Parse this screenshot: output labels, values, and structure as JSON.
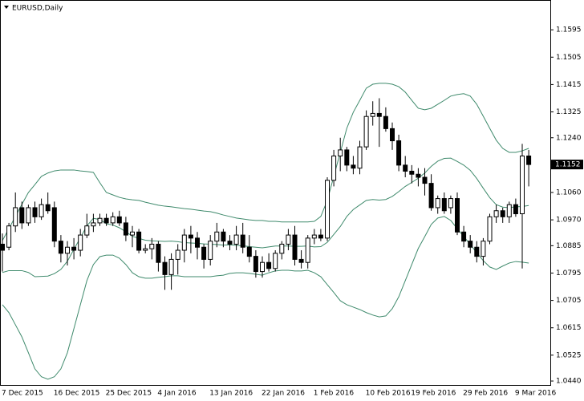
{
  "chart_data": {
    "type": "candlestick",
    "title": "EURUSD,Daily",
    "categories": [
      "7 Dec 2015",
      null,
      null,
      null,
      null,
      null,
      null,
      null,
      "16 Dec 2015",
      null,
      null,
      null,
      null,
      null,
      null,
      null,
      "25 Dec 2015",
      null,
      null,
      null,
      null,
      null,
      null,
      null,
      "4 Jan 2016",
      null,
      null,
      null,
      null,
      null,
      null,
      null,
      "13 Jan 2016",
      null,
      null,
      null,
      null,
      null,
      null,
      null,
      "22 Jan 2016",
      null,
      null,
      null,
      null,
      null,
      null,
      null,
      "1 Feb 2016",
      null,
      null,
      null,
      null,
      null,
      null,
      null,
      "10 Feb 2016",
      null,
      null,
      null,
      null,
      null,
      null,
      "19 Feb 2016",
      null,
      null,
      null,
      null,
      null,
      null,
      null,
      "29 Feb 2016",
      null,
      null,
      null,
      null,
      null,
      null,
      null,
      "9 Mar 2016",
      null,
      null
    ],
    "open": [
      1.089,
      1.088,
      1.095,
      1.101,
      1.096,
      1.101,
      1.098,
      1.102,
      1.101,
      1.09,
      1.086,
      1.088,
      1.087,
      1.092,
      1.095,
      1.096,
      1.0975,
      1.096,
      1.098,
      1.096,
      1.092,
      1.093,
      1.087,
      1.0875,
      1.089,
      1.083,
      1.079,
      1.084,
      1.087,
      1.092,
      1.091,
      1.088,
      1.084,
      1.09,
      1.093,
      1.09,
      1.089,
      1.092,
      1.088,
      1.085,
      1.08,
      1.083,
      1.081,
      1.086,
      1.089,
      1.092,
      1.084,
      1.083,
      1.091,
      1.092,
      1.091,
      1.11,
      1.118,
      1.12,
      1.115,
      1.114,
      1.121,
      1.131,
      1.132,
      1.131,
      1.127,
      1.123,
      1.115,
      1.113,
      1.112,
      1.111,
      1.109,
      1.101,
      1.104,
      1.101,
      1.104,
      1.093,
      1.09,
      1.088,
      1.085,
      1.09,
      1.098,
      1.1,
      1.098,
      1.102,
      1.099,
      1.118
    ],
    "high": [
      1.0925,
      1.096,
      1.106,
      1.103,
      1.102,
      1.103,
      1.104,
      1.106,
      1.103,
      1.092,
      1.09,
      1.091,
      1.094,
      1.099,
      1.099,
      1.099,
      1.099,
      1.0995,
      1.1,
      1.098,
      1.095,
      1.094,
      1.089,
      1.091,
      1.09,
      1.085,
      1.086,
      1.089,
      1.094,
      1.095,
      1.093,
      1.089,
      1.092,
      1.096,
      1.094,
      1.092,
      1.095,
      1.096,
      1.092,
      1.087,
      1.085,
      1.086,
      1.087,
      1.09,
      1.094,
      1.095,
      1.087,
      1.092,
      1.094,
      1.094,
      1.111,
      1.12,
      1.124,
      1.121,
      1.118,
      1.123,
      1.133,
      1.136,
      1.137,
      1.134,
      1.129,
      1.125,
      1.118,
      1.115,
      1.114,
      1.114,
      1.112,
      1.105,
      1.106,
      1.105,
      1.106,
      1.095,
      1.092,
      1.09,
      1.091,
      1.099,
      1.102,
      1.101,
      1.103,
      1.104,
      1.122,
      1.12
    ],
    "low": [
      1.08,
      1.087,
      1.093,
      1.094,
      1.095,
      1.096,
      1.097,
      1.099,
      1.088,
      1.083,
      1.082,
      1.084,
      1.085,
      1.091,
      1.093,
      1.095,
      1.095,
      1.095,
      1.095,
      1.09,
      1.088,
      1.086,
      1.086,
      1.084,
      1.08,
      1.074,
      1.074,
      1.079,
      1.083,
      1.086,
      1.084,
      1.081,
      1.082,
      1.088,
      1.088,
      1.087,
      1.087,
      1.086,
      1.083,
      1.078,
      1.078,
      1.08,
      1.08,
      1.084,
      1.087,
      1.082,
      1.081,
      1.081,
      1.089,
      1.09,
      1.09,
      1.108,
      1.113,
      1.113,
      1.112,
      1.112,
      1.12,
      1.128,
      1.121,
      1.126,
      1.12,
      1.113,
      1.111,
      1.109,
      1.108,
      1.105,
      1.1,
      1.099,
      1.099,
      1.099,
      1.092,
      1.088,
      1.086,
      1.083,
      1.082,
      1.089,
      1.096,
      1.096,
      1.096,
      1.098,
      1.081,
      1.108
    ],
    "close": [
      1.087,
      1.095,
      1.101,
      1.096,
      1.101,
      1.098,
      1.102,
      1.1,
      1.09,
      1.086,
      1.088,
      1.087,
      1.092,
      1.095,
      1.096,
      1.0975,
      1.096,
      1.098,
      1.096,
      1.092,
      1.093,
      1.087,
      1.0875,
      1.089,
      1.083,
      1.079,
      1.084,
      1.087,
      1.092,
      1.091,
      1.088,
      1.084,
      1.09,
      1.093,
      1.09,
      1.089,
      1.092,
      1.088,
      1.085,
      1.08,
      1.083,
      1.081,
      1.086,
      1.089,
      1.092,
      1.084,
      1.083,
      1.091,
      1.092,
      1.091,
      1.11,
      1.118,
      1.12,
      1.115,
      1.114,
      1.121,
      1.131,
      1.132,
      1.131,
      1.127,
      1.123,
      1.115,
      1.113,
      1.112,
      1.111,
      1.109,
      1.101,
      1.104,
      1.1,
      1.104,
      1.093,
      1.09,
      1.088,
      1.085,
      1.09,
      1.098,
      1.1,
      1.098,
      1.102,
      1.099,
      1.118,
      1.1152
    ],
    "up_color": "#ffffff",
    "down_color": "#000000",
    "series": [
      {
        "color": "#3f8a6c",
        "values": [
          1.0902,
          1.0941,
          1.0981,
          1.1021,
          1.106,
          1.1086,
          1.1113,
          1.1124,
          1.1131,
          1.1134,
          1.1134,
          1.1134,
          1.1131,
          1.1129,
          1.1126,
          1.1092,
          1.106,
          1.1052,
          1.1044,
          1.1039,
          1.1036,
          1.1034,
          1.1028,
          1.1023,
          1.1018,
          1.1015,
          1.1013,
          1.101,
          1.1007,
          1.1005,
          1.1002,
          1.0999,
          1.0997,
          1.0992,
          1.0986,
          1.0981,
          1.0976,
          1.0973,
          1.097,
          1.0968,
          1.0968,
          1.0965,
          1.0965,
          1.0963,
          1.0963,
          1.0963,
          1.0963,
          1.0963,
          1.0965,
          1.0981,
          1.1034,
          1.1113,
          1.1192,
          1.1271,
          1.1324,
          1.1363,
          1.1403,
          1.1416,
          1.1419,
          1.1419,
          1.1416,
          1.1408,
          1.139,
          1.1363,
          1.1337,
          1.1332,
          1.1337,
          1.135,
          1.1363,
          1.1377,
          1.1382,
          1.1385,
          1.1377,
          1.135,
          1.1311,
          1.1271,
          1.1232,
          1.1205,
          1.1192,
          1.1192,
          1.1197,
          1.1205
        ]
      },
      {
        "color": "#3f8a6c",
        "values": [
          1.0797,
          1.0803,
          1.0803,
          1.0803,
          1.0797,
          1.0783,
          1.0784,
          1.0785,
          1.0793,
          1.0807,
          1.0834,
          1.0873,
          1.0911,
          1.095,
          1.0975,
          1.0971,
          1.0957,
          1.0953,
          1.0944,
          1.0931,
          1.0916,
          1.0909,
          1.0903,
          1.0901,
          1.09,
          1.0899,
          1.09,
          1.0898,
          1.0895,
          1.0894,
          1.0893,
          1.0891,
          1.089,
          1.0889,
          1.0887,
          1.0888,
          1.0886,
          1.0885,
          1.0882,
          1.088,
          1.0878,
          1.0881,
          1.0884,
          1.0884,
          1.0884,
          1.0883,
          1.0883,
          1.0884,
          1.0881,
          1.0882,
          1.0896,
          1.0922,
          1.0948,
          1.0981,
          1.1004,
          1.1019,
          1.1034,
          1.1037,
          1.1035,
          1.1037,
          1.1047,
          1.1063,
          1.108,
          1.1093,
          1.1107,
          1.1124,
          1.1146,
          1.1163,
          1.1172,
          1.1173,
          1.1162,
          1.115,
          1.1133,
          1.1106,
          1.1074,
          1.1043,
          1.102,
          1.1012,
          1.101,
          1.1013,
          1.1014,
          1.1017
        ]
      },
      {
        "color": "#3f8a6c",
        "values": [
          1.0691,
          1.0665,
          1.0625,
          1.0585,
          1.0533,
          1.048,
          1.0454,
          1.0446,
          1.0454,
          1.048,
          1.0533,
          1.0612,
          1.0691,
          1.077,
          1.0823,
          1.0849,
          1.0854,
          1.0854,
          1.0844,
          1.0823,
          1.0796,
          1.0783,
          1.0778,
          1.0778,
          1.0781,
          1.0783,
          1.0786,
          1.0786,
          1.0783,
          1.0783,
          1.0783,
          1.0783,
          1.0783,
          1.0786,
          1.0788,
          1.0794,
          1.0796,
          1.0796,
          1.0794,
          1.0791,
          1.0788,
          1.0796,
          1.0802,
          1.0804,
          1.0804,
          1.0802,
          1.0802,
          1.0804,
          1.0796,
          1.0783,
          1.0757,
          1.0731,
          1.0704,
          1.0691,
          1.0683,
          1.0675,
          1.0665,
          1.0657,
          1.0651,
          1.0654,
          1.0678,
          1.0717,
          1.077,
          1.0823,
          1.0876,
          1.0915,
          1.0955,
          1.0976,
          1.0981,
          1.0968,
          1.0941,
          1.0915,
          1.0889,
          1.0862,
          1.0836,
          1.0815,
          1.0807,
          1.0818,
          1.0828,
          1.0833,
          1.0831,
          1.0828
        ]
      }
    ],
    "current_price": 1.1152,
    "ylim": [
      1.0427,
      1.1693
    ],
    "yticks": [
      1.1595,
      1.1505,
      1.1415,
      1.1325,
      {
        "value": 1.124,
        "label": "1.1240"
      },
      {
        "value": 1.106,
        "label": "1.1060"
      },
      {
        "value": 1.097,
        "label": "1.0970"
      },
      1.0885,
      1.0795,
      1.0705,
      1.0615,
      1.0525,
      {
        "value": 1.044,
        "label": "1.0440"
      }
    ],
    "grid": false
  }
}
